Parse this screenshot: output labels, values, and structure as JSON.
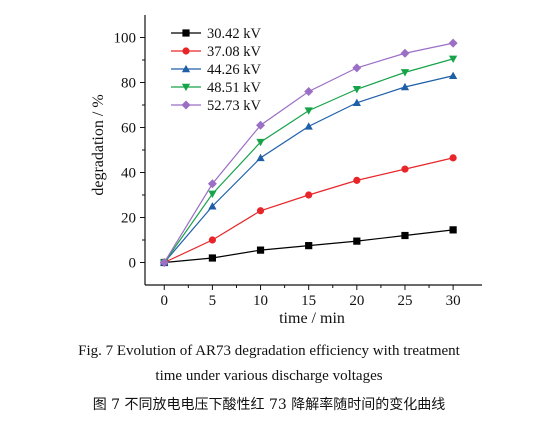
{
  "chart_data": {
    "type": "line",
    "title": "",
    "xlabel": "time / min",
    "ylabel": "degradation / %",
    "x": [
      0,
      5,
      10,
      15,
      20,
      25,
      30
    ],
    "xlim": [
      -2,
      33
    ],
    "ylim": [
      -10,
      110
    ],
    "xticks": [
      0,
      5,
      10,
      15,
      20,
      25,
      30
    ],
    "yticks": [
      0,
      20,
      40,
      60,
      80,
      100
    ],
    "grid": false,
    "legend_position": "top-left",
    "series": [
      {
        "name": "30.42 kV",
        "color": "#000000",
        "marker": "square",
        "values": [
          0,
          2,
          5.5,
          7.5,
          9.5,
          12,
          14.5
        ]
      },
      {
        "name": "37.08 kV",
        "color": "#e8262a",
        "marker": "circle",
        "values": [
          0,
          10,
          23,
          30,
          36.5,
          41.5,
          46.5
        ]
      },
      {
        "name": "44.26 kV",
        "color": "#1f5fa8",
        "marker": "triangle-up",
        "values": [
          0,
          25,
          46.5,
          60.5,
          71,
          78,
          83
        ]
      },
      {
        "name": "48.51 kV",
        "color": "#17a34a",
        "marker": "triangle-down",
        "values": [
          0,
          30.5,
          53.5,
          67.5,
          77,
          84.5,
          90.5
        ]
      },
      {
        "name": "52.73 kV",
        "color": "#9b6fc6",
        "marker": "diamond",
        "values": [
          0,
          35,
          61,
          76,
          86.5,
          93,
          97.5
        ]
      }
    ]
  },
  "caption": {
    "line1": "Fig. 7    Evolution of AR73 degradation efficiency with treatment",
    "line2": "time under various discharge voltages",
    "line3": "图 7    不同放电电压下酸性红 73 降解率随时间的变化曲线"
  }
}
